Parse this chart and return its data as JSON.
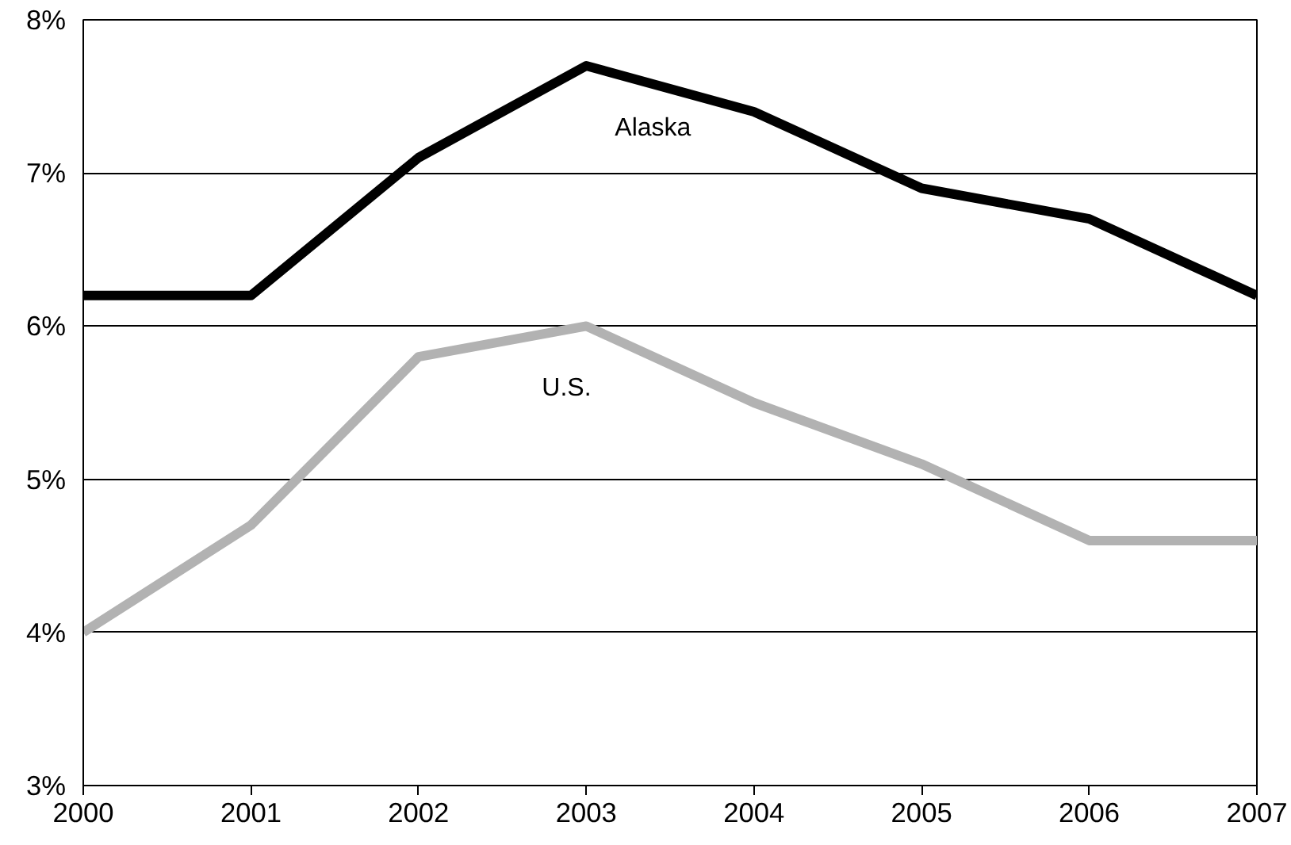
{
  "chart_data": {
    "type": "line",
    "x": [
      2000,
      2001,
      2002,
      2003,
      2004,
      2005,
      2006,
      2007
    ],
    "series": [
      {
        "name": "Alaska",
        "color": "#000000",
        "values": [
          6.2,
          6.2,
          7.1,
          7.7,
          7.4,
          6.9,
          6.7,
          6.2
        ]
      },
      {
        "name": "U.S.",
        "color": "#b2b2b2",
        "values": [
          4.0,
          4.7,
          5.8,
          6.0,
          5.5,
          5.1,
          4.6,
          4.6
        ]
      }
    ],
    "xlim": [
      2000,
      2007
    ],
    "xticks": [
      2000,
      2001,
      2002,
      2003,
      2004,
      2005,
      2006,
      2007
    ],
    "ylim": [
      3,
      8
    ],
    "yticks": [
      {
        "value": 3,
        "label": "3%"
      },
      {
        "value": 4,
        "label": "4%"
      },
      {
        "value": 5,
        "label": "5%"
      },
      {
        "value": 6,
        "label": "6%"
      },
      {
        "value": 7,
        "label": "7%"
      },
      {
        "value": 8,
        "label": "8%"
      }
    ],
    "grid": "y",
    "legend": false,
    "marker": "none",
    "line_style": "solid"
  }
}
